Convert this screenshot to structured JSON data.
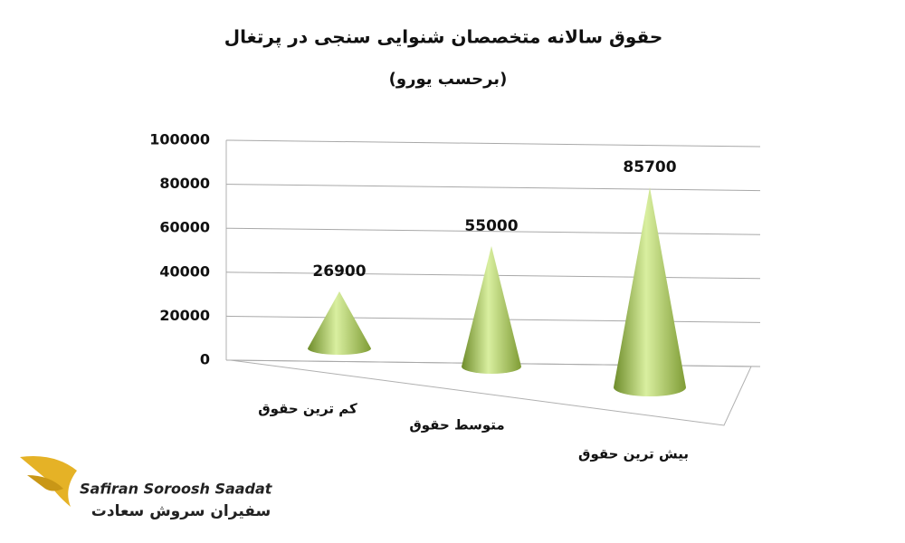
{
  "chart_data": {
    "type": "cone",
    "title": "حقوق سالانه متخصصان شنوایی سنجی در پرتغال",
    "subtitle": "(برحسب یورو)",
    "categories": [
      "کم ترین حقوق",
      "متوسط حقوق",
      "بیش ترین حقوق"
    ],
    "values": [
      26900,
      55000,
      85700
    ],
    "color": "#9bbb59",
    "ylim": [
      0,
      100000
    ],
    "yticks": [
      0,
      20000,
      40000,
      60000,
      80000,
      100000
    ],
    "grid": true
  },
  "logo": {
    "name_en": "Safiran Soroosh Saadat",
    "name_fa": "سفیران سروش سعادت"
  }
}
